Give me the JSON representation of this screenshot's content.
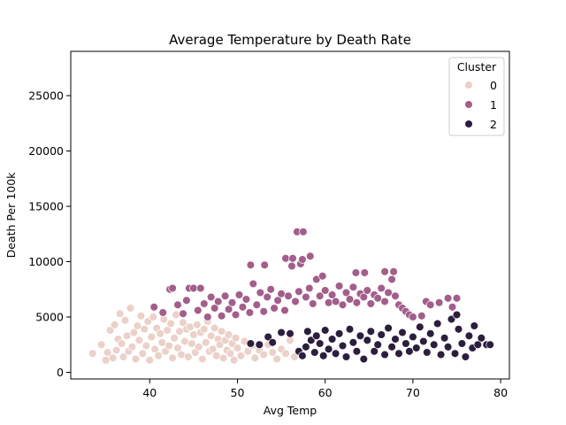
{
  "chart_data": {
    "type": "scatter",
    "title": "Average Temperature by Death Rate",
    "xlabel": "Avg Temp",
    "ylabel": "Death Per 100k",
    "xlim": [
      31,
      81
    ],
    "ylim": [
      -600,
      29000
    ],
    "xticks": [
      "40",
      "50",
      "60",
      "70",
      "80"
    ],
    "yticks": [
      "0",
      "5000",
      "10000",
      "15000",
      "20000",
      "25000"
    ],
    "grid": false,
    "legend": {
      "title": "Cluster",
      "placement": "top-right",
      "entries": [
        {
          "label": "0",
          "color": "#ebd1c9"
        },
        {
          "label": "1",
          "color": "#a35e8b"
        },
        {
          "label": "2",
          "color": "#2c1e3d"
        }
      ]
    },
    "series": [
      {
        "name": "0",
        "color": "#ebd1c9",
        "points": [
          [
            33.5,
            1700
          ],
          [
            34.5,
            2500
          ],
          [
            35,
            1100
          ],
          [
            35.2,
            1800
          ],
          [
            35.5,
            3800
          ],
          [
            35.8,
            1300
          ],
          [
            36,
            4300
          ],
          [
            36.2,
            2000
          ],
          [
            36.4,
            3000
          ],
          [
            36.6,
            5300
          ],
          [
            36.8,
            2600
          ],
          [
            37,
            1400
          ],
          [
            37.2,
            4700
          ],
          [
            37.4,
            3300
          ],
          [
            37.6,
            1900
          ],
          [
            37.8,
            5800
          ],
          [
            38,
            2300
          ],
          [
            38.2,
            3600
          ],
          [
            38.4,
            1200
          ],
          [
            38.6,
            4200
          ],
          [
            38.8,
            2900
          ],
          [
            39,
            5100
          ],
          [
            39.2,
            1700
          ],
          [
            39.4,
            3900
          ],
          [
            39.6,
            2400
          ],
          [
            39.8,
            4600
          ],
          [
            40,
            1100
          ],
          [
            40.2,
            3200
          ],
          [
            40.4,
            5000
          ],
          [
            40.6,
            2100
          ],
          [
            40.8,
            4000
          ],
          [
            41,
            1500
          ],
          [
            41.2,
            3500
          ],
          [
            41.4,
            2700
          ],
          [
            41.6,
            4800
          ],
          [
            41.8,
            1900
          ],
          [
            42,
            3800
          ],
          [
            42.2,
            2400
          ],
          [
            42.4,
            4400
          ],
          [
            42.6,
            1300
          ],
          [
            42.8,
            3100
          ],
          [
            43,
            5200
          ],
          [
            43.2,
            2200
          ],
          [
            43.4,
            3700
          ],
          [
            43.6,
            1600
          ],
          [
            43.8,
            4500
          ],
          [
            44,
            2800
          ],
          [
            44.2,
            3900
          ],
          [
            44.4,
            1400
          ],
          [
            44.6,
            4100
          ],
          [
            44.8,
            2600
          ],
          [
            45,
            3400
          ],
          [
            45.2,
            1800
          ],
          [
            45.4,
            4300
          ],
          [
            45.6,
            2300
          ],
          [
            45.8,
            3600
          ],
          [
            46,
            1200
          ],
          [
            46.2,
            3900
          ],
          [
            46.4,
            2700
          ],
          [
            46.6,
            4600
          ],
          [
            46.8,
            1900
          ],
          [
            47,
            3300
          ],
          [
            47.2,
            2100
          ],
          [
            47.4,
            4000
          ],
          [
            47.6,
            1500
          ],
          [
            47.8,
            3000
          ],
          [
            48,
            2500
          ],
          [
            48.2,
            3700
          ],
          [
            48.4,
            1300
          ],
          [
            48.6,
            2900
          ],
          [
            48.8,
            2000
          ],
          [
            49,
            3400
          ],
          [
            49.2,
            1700
          ],
          [
            49.4,
            2600
          ],
          [
            49.6,
            1100
          ],
          [
            49.8,
            3100
          ],
          [
            50,
            2200
          ],
          [
            50.4,
            1500
          ],
          [
            50.8,
            2800
          ],
          [
            51.2,
            1900
          ],
          [
            51.6,
            2400
          ],
          [
            52,
            1300
          ],
          [
            52.5,
            2000
          ],
          [
            53,
            1600
          ],
          [
            53.5,
            2500
          ],
          [
            54,
            1800
          ],
          [
            54.5,
            1200
          ],
          [
            55,
            2100
          ],
          [
            55.5,
            1700
          ],
          [
            56,
            2900
          ],
          [
            56.5,
            1400
          ]
        ]
      },
      {
        "name": "1",
        "color": "#a35e8b",
        "points": [
          [
            40.5,
            5900
          ],
          [
            41.5,
            5400
          ],
          [
            42.3,
            7500
          ],
          [
            42.6,
            7600
          ],
          [
            43.2,
            6100
          ],
          [
            43.8,
            5300
          ],
          [
            44.2,
            6500
          ],
          [
            44.5,
            7600
          ],
          [
            45,
            7600
          ],
          [
            45.5,
            5600
          ],
          [
            45.8,
            7600
          ],
          [
            46.2,
            6200
          ],
          [
            46.6,
            5000
          ],
          [
            47,
            6800
          ],
          [
            47.4,
            5800
          ],
          [
            47.8,
            6400
          ],
          [
            48.2,
            5100
          ],
          [
            48.6,
            6900
          ],
          [
            49,
            5700
          ],
          [
            49.4,
            6300
          ],
          [
            49.8,
            5200
          ],
          [
            50.2,
            7000
          ],
          [
            50.6,
            5900
          ],
          [
            51,
            6600
          ],
          [
            51.4,
            5400
          ],
          [
            51.5,
            9700
          ],
          [
            51.8,
            8000
          ],
          [
            52.2,
            6100
          ],
          [
            52.6,
            7200
          ],
          [
            53,
            5500
          ],
          [
            53.1,
            9700
          ],
          [
            53.4,
            6800
          ],
          [
            53.8,
            7500
          ],
          [
            54.2,
            5800
          ],
          [
            54.6,
            6500
          ],
          [
            55,
            7100
          ],
          [
            55.4,
            5600
          ],
          [
            55.5,
            10300
          ],
          [
            55.8,
            6900
          ],
          [
            56.2,
            9600
          ],
          [
            56.3,
            10300
          ],
          [
            56.6,
            6400
          ],
          [
            56.8,
            12700
          ],
          [
            57,
            7300
          ],
          [
            57.2,
            9800
          ],
          [
            57.4,
            10200
          ],
          [
            57.5,
            12700
          ],
          [
            57.8,
            6800
          ],
          [
            58.2,
            7600
          ],
          [
            58.3,
            10500
          ],
          [
            58.6,
            6200
          ],
          [
            59,
            8400
          ],
          [
            59.4,
            6900
          ],
          [
            59.7,
            8700
          ],
          [
            60,
            7400
          ],
          [
            60.4,
            6300
          ],
          [
            60.8,
            7000
          ],
          [
            61.2,
            6400
          ],
          [
            61.6,
            7800
          ],
          [
            62,
            6100
          ],
          [
            62.4,
            7200
          ],
          [
            62.8,
            6600
          ],
          [
            63.2,
            7700
          ],
          [
            63.5,
            9000
          ],
          [
            63.6,
            6300
          ],
          [
            64,
            7100
          ],
          [
            64.4,
            6800
          ],
          [
            64.5,
            9000
          ],
          [
            64.8,
            7400
          ],
          [
            65.2,
            6200
          ],
          [
            65.6,
            7000
          ],
          [
            66,
            6700
          ],
          [
            66.4,
            7600
          ],
          [
            66.8,
            6400
          ],
          [
            66.8,
            9100
          ],
          [
            67.2,
            7200
          ],
          [
            67.6,
            8400
          ],
          [
            67.8,
            9100
          ],
          [
            68,
            6900
          ],
          [
            68.4,
            6100
          ],
          [
            68.8,
            5800
          ],
          [
            69.2,
            5500
          ],
          [
            69.6,
            5200
          ],
          [
            70,
            5000
          ],
          [
            71,
            5100
          ],
          [
            71.5,
            6400
          ],
          [
            72,
            6100
          ],
          [
            73,
            6300
          ],
          [
            74,
            6700
          ],
          [
            74.5,
            5900
          ],
          [
            75,
            6700
          ]
        ]
      },
      {
        "name": "2",
        "color": "#2c1e3d",
        "points": [
          [
            51.5,
            2600
          ],
          [
            52.5,
            2500
          ],
          [
            53.5,
            3200
          ],
          [
            54,
            2700
          ],
          [
            55,
            3600
          ],
          [
            56,
            3500
          ],
          [
            57,
            1900
          ],
          [
            57.4,
            1500
          ],
          [
            57.8,
            2300
          ],
          [
            58,
            3700
          ],
          [
            58.4,
            2900
          ],
          [
            58.8,
            1800
          ],
          [
            59,
            3300
          ],
          [
            59.4,
            2600
          ],
          [
            59.8,
            1500
          ],
          [
            60,
            3800
          ],
          [
            60.4,
            2100
          ],
          [
            60.8,
            3000
          ],
          [
            61.2,
            1700
          ],
          [
            61.6,
            3500
          ],
          [
            62,
            2400
          ],
          [
            62.4,
            1400
          ],
          [
            62.8,
            3900
          ],
          [
            63.2,
            2700
          ],
          [
            63.6,
            1900
          ],
          [
            64,
            3300
          ],
          [
            64.4,
            1200
          ],
          [
            64.8,
            2900
          ],
          [
            65.2,
            3700
          ],
          [
            65.6,
            1900
          ],
          [
            66,
            2500
          ],
          [
            66.4,
            3400
          ],
          [
            66.8,
            1600
          ],
          [
            67.2,
            4000
          ],
          [
            67.6,
            2300
          ],
          [
            68,
            3000
          ],
          [
            68.4,
            1700
          ],
          [
            68.8,
            3600
          ],
          [
            69.2,
            2600
          ],
          [
            69.6,
            1900
          ],
          [
            70,
            3200
          ],
          [
            70.4,
            2200
          ],
          [
            70.8,
            4100
          ],
          [
            71.2,
            2800
          ],
          [
            71.6,
            1800
          ],
          [
            72,
            3500
          ],
          [
            72.4,
            2500
          ],
          [
            72.8,
            4400
          ],
          [
            73.2,
            1600
          ],
          [
            73.6,
            3100
          ],
          [
            74,
            2300
          ],
          [
            74.4,
            4800
          ],
          [
            74.8,
            1700
          ],
          [
            75,
            5200
          ],
          [
            75.2,
            3900
          ],
          [
            75.6,
            2600
          ],
          [
            76,
            1400
          ],
          [
            76.4,
            3300
          ],
          [
            76.8,
            2200
          ],
          [
            77,
            4200
          ],
          [
            77.4,
            2500
          ],
          [
            77.8,
            3100
          ],
          [
            78.4,
            2500
          ],
          [
            78.8,
            2500
          ]
        ]
      }
    ]
  }
}
